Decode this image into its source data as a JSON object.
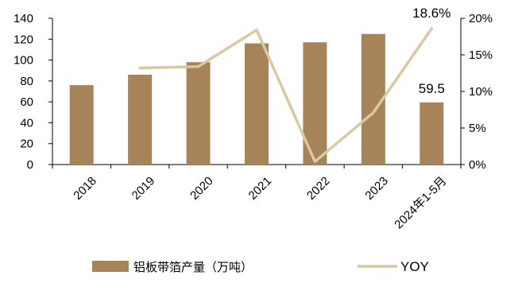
{
  "chart_data": {
    "type": "bar+line",
    "categories": [
      "2018",
      "2019",
      "2020",
      "2021",
      "2022",
      "2023",
      "2024年1-5月"
    ],
    "series": [
      {
        "name": "铝板带箔产量（万吨）",
        "type": "bar",
        "axis": "left",
        "color": "#a68358",
        "values": [
          76,
          86,
          98,
          116,
          117,
          125,
          59.5
        ]
      },
      {
        "name": "YOY",
        "type": "line",
        "axis": "right",
        "color": "#d9c9a3",
        "values": [
          null,
          0.132,
          0.134,
          0.184,
          0.004,
          0.071,
          0.186
        ]
      }
    ],
    "y_left": {
      "min": 0,
      "max": 140,
      "step": 20,
      "ticks": [
        "0",
        "20",
        "40",
        "60",
        "80",
        "100",
        "120",
        "140"
      ]
    },
    "y_right": {
      "min": 0,
      "max": 0.2,
      "step": 0.05,
      "ticks": [
        "0%",
        "5%",
        "10%",
        "15%",
        "20%"
      ]
    },
    "data_labels": [
      {
        "series": 0,
        "index": 6,
        "text": "59.5"
      },
      {
        "series": 1,
        "index": 6,
        "text": "18.6%"
      }
    ],
    "grid": false,
    "legend": "bottom"
  }
}
